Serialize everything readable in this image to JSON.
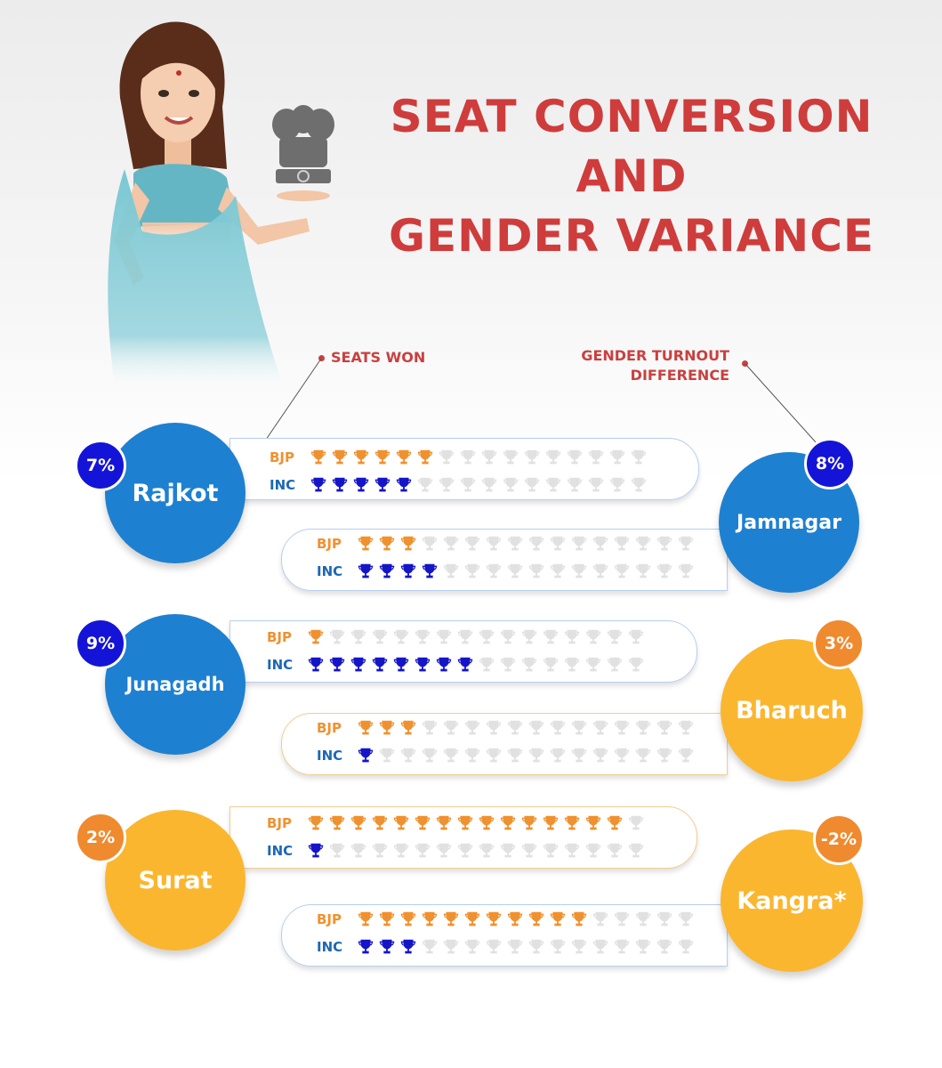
{
  "title": [
    "SEAT CONVERSION",
    "AND",
    "GENDER VARIANCE"
  ],
  "legend": {
    "seats_won": "SEATS WON",
    "gender_turnout": [
      "GENDER TURNOUT",
      "DIFFERENCE"
    ]
  },
  "parties": {
    "bjp": "BJP",
    "inc": "INC"
  },
  "colors": {
    "title": "#cf3c3c",
    "bjp": "#f0912f",
    "inc": "#1515c8",
    "empty": "#e1e1e1",
    "circle_blue": "#1e80d1",
    "circle_yellow": "#fbb62f",
    "badge_blue": "#1414d8",
    "badge_orange": "#f08a2e"
  },
  "icons": {
    "seat": "trophy-icon",
    "emblem": "emblem-icon"
  },
  "trophies_per_row": 16,
  "districts": [
    {
      "name": "Rajkot",
      "gender_diff": "7%",
      "bjp_seats": 6,
      "inc_seats": 5
    },
    {
      "name": "Jamnagar",
      "gender_diff": "8%",
      "bjp_seats": 3,
      "inc_seats": 4
    },
    {
      "name": "Junagadh",
      "gender_diff": "9%",
      "bjp_seats": 1,
      "inc_seats": 8
    },
    {
      "name": "Bharuch",
      "gender_diff": "3%",
      "bjp_seats": 3,
      "inc_seats": 1
    },
    {
      "name": "Surat",
      "gender_diff": "2%",
      "bjp_seats": 15,
      "inc_seats": 1
    },
    {
      "name": "Kangra*",
      "gender_diff": "-2%",
      "bjp_seats": 11,
      "inc_seats": 3
    }
  ]
}
